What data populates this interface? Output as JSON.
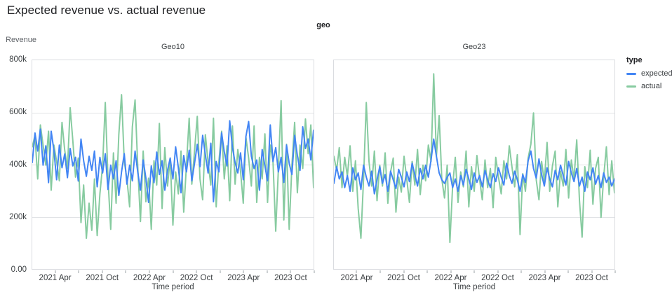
{
  "page": {
    "title": "Expected revenue vs. actual revenue"
  },
  "facet_field_label": "geo",
  "y_axis": {
    "title": "Revenue",
    "ticks": [
      "800k",
      "600k",
      "400k",
      "200k",
      "0.00"
    ]
  },
  "x_axis": {
    "title": "Time period",
    "month_span": 36,
    "ticks": [
      {
        "m": 3,
        "label": "2021 Apr"
      },
      {
        "m": 6
      },
      {
        "m": 9,
        "label": "2021 Oct"
      },
      {
        "m": 12
      },
      {
        "m": 15,
        "label": "2022 Apr"
      },
      {
        "m": 18
      },
      {
        "m": 21,
        "label": "2022 Oct"
      },
      {
        "m": 24
      },
      {
        "m": 27,
        "label": "2023 Apr"
      },
      {
        "m": 30
      },
      {
        "m": 33,
        "label": "2023 Oct"
      },
      {
        "m": 36
      }
    ]
  },
  "legend": {
    "title": "type",
    "items": [
      {
        "label": "expected",
        "color": "#4285f4"
      },
      {
        "label": "actual",
        "color": "#87cba0"
      }
    ]
  },
  "chart_data": {
    "type": "line",
    "title": "Expected revenue vs. actual revenue",
    "xlabel": "Time period",
    "ylabel": "Revenue",
    "x_range": [
      "2021-01",
      "2023-12"
    ],
    "y_range": [
      0,
      800000
    ],
    "y_max": 800,
    "value_units": "thousands of revenue (k)",
    "cadence": "weekly (approximate, values estimated from plot)",
    "grid": "horizontal gridlines at 200k/400k/600k",
    "legend_position": "right",
    "facets": [
      {
        "name": "Geo10",
        "series": [
          {
            "name": "expected",
            "color": "#4285f4",
            "values": [
              408,
              521,
              452,
              536,
              398,
              472,
              331,
              528,
              455,
              342,
              475,
              388,
              441,
              350,
              462,
              395,
              428,
              337,
              498,
              415,
              355,
              432,
              378,
              452,
              315,
              428,
              368,
              442,
              305,
              398,
              345,
              415,
              282,
              372,
              442,
              325,
              398,
              338,
              452,
              372,
              302,
              418,
              348,
              255,
              395,
              331,
              448,
              362,
              415,
              302,
              378,
              425,
              345,
              468,
              388,
              292,
              435,
              372,
              455,
              338,
              405,
              478,
              392,
              512,
              438,
              368,
              482,
              258,
              412,
              372,
              522,
              448,
              395,
              568,
              465,
              408,
              368,
              445,
              342,
              508,
              565,
              432,
              385,
              418,
              302,
              458,
              395,
              338,
              552,
              412,
              465,
              372,
              428,
              332,
              475,
              405,
              362,
              512,
              435,
              378,
              545,
              462,
              498,
              418,
              532
            ]
          },
          {
            "name": "actual",
            "color": "#87cba0",
            "values": [
              468,
              512,
              345,
              552,
              475,
              398,
              528,
              302,
              475,
              412,
              338,
              562,
              455,
              385,
              618,
              492,
              352,
              425,
              178,
              322,
              118,
              252,
              148,
              345,
              128,
              288,
              398,
              638,
              345,
              152,
              445,
              252,
              515,
              668,
              412,
              345,
              238,
              545,
              648,
              395,
              182,
              452,
              258,
              348,
              152,
              415,
              322,
              558,
              232,
              465,
              318,
              425,
              168,
              372,
              288,
              452,
              218,
              398,
              578,
              325,
              452,
              585,
              345,
              265,
              515,
              408,
              322,
              578,
              238,
              412,
              528,
              345,
              472,
              262,
              548,
              325,
              458,
              375,
              252,
              505,
              425,
              318,
              548,
              255,
              428,
              345,
              518,
              255,
              475,
              412,
              145,
              382,
              645,
              188,
              478,
              152,
              398,
              562,
              292,
              475,
              385,
              575,
              442,
              552,
              312
            ]
          }
        ]
      },
      {
        "name": "Geo23",
        "series": [
          {
            "name": "expected",
            "color": "#4285f4",
            "values": [
              328,
              392,
              345,
              372,
              312,
              358,
              298,
              388,
              342,
              368,
              305,
              398,
              352,
              318,
              375,
              288,
              342,
              392,
              328,
              362,
              298,
              375,
              342,
              308,
              382,
              352,
              315,
              372,
              335,
              405,
              362,
              318,
              385,
              345,
              398,
              352,
              418,
              498,
              432,
              368,
              342,
              328,
              352,
              368,
              312,
              345,
              298,
              358,
              322,
              382,
              345,
              305,
              368,
              332,
              358,
              315,
              378,
              342,
              312,
              365,
              335,
              388,
              352,
              322,
              405,
              358,
              328,
              375,
              342,
              298,
              362,
              332,
              415,
              452,
              385,
              348,
              422,
              362,
              318,
              388,
              345,
              315,
              378,
              342,
              398,
              358,
              322,
              412,
              368,
              335,
              385,
              318,
              352,
              298,
              372,
              342,
              388,
              325,
              358,
              312,
              368,
              332,
              352,
              318,
              345
            ]
          },
          {
            "name": "actual",
            "color": "#87cba0",
            "values": [
              432,
              378,
              465,
              312,
              428,
              355,
              472,
              298,
              415,
              232,
              118,
              345,
              638,
              412,
              318,
              452,
              262,
              398,
              318,
              445,
              252,
              372,
              425,
              218,
              352,
              295,
              432,
              345,
              255,
              412,
              322,
              458,
              285,
              398,
              338,
              475,
              412,
              748,
              432,
              588,
              345,
              272,
              398,
              102,
              318,
              428,
              255,
              372,
              315,
              452,
              238,
              392,
              298,
              435,
              345,
              265,
              418,
              312,
              385,
              235,
              428,
              352,
              288,
              415,
              345,
              472,
              392,
              315,
              438,
              132,
              365,
              298,
              425,
              478,
              598,
              342,
              265,
              412,
              335,
              485,
              298,
              395,
              452,
              238,
              375,
              318,
              458,
              272,
              418,
              345,
              495,
              265,
              122,
              392,
              312,
              455,
              248,
              385,
              428,
              198,
              352,
              468,
              285,
              415,
              292
            ]
          }
        ]
      }
    ]
  }
}
